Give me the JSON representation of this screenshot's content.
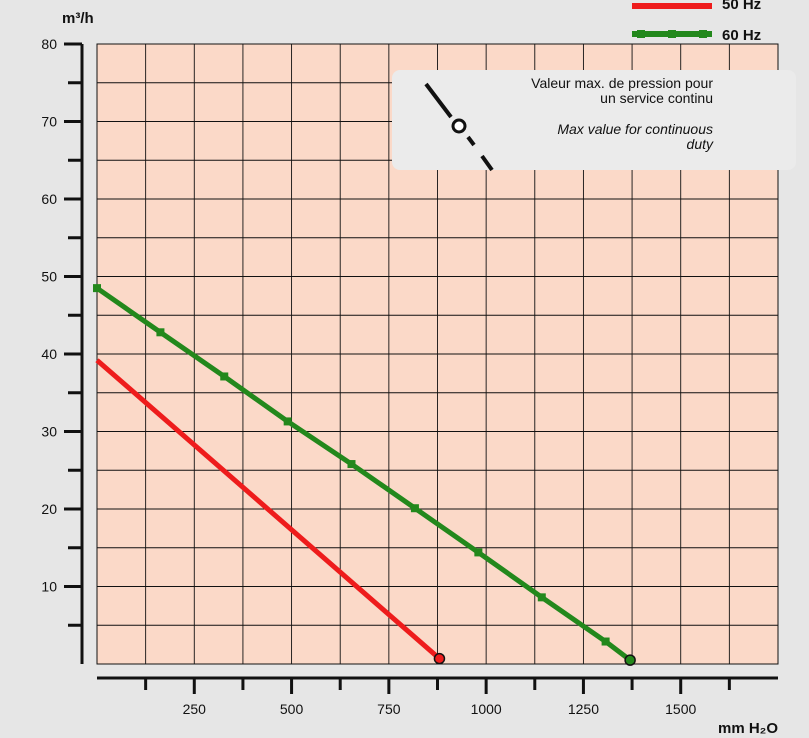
{
  "chart_data": {
    "type": "line",
    "ylabel": "m³/h",
    "xlabel": "mm H₂O",
    "xlim": [
      0,
      1750
    ],
    "ylim": [
      0,
      80
    ],
    "x_ticks": [
      250,
      500,
      750,
      1000,
      1250,
      1500
    ],
    "y_ticks": [
      10,
      20,
      30,
      40,
      50,
      60,
      70,
      80
    ],
    "grid": true,
    "legend_position": "top-right",
    "series": [
      {
        "name": "50 Hz",
        "color": "#ee1c1c",
        "x": [
          0,
          880
        ],
        "y": [
          39.2,
          0.7
        ],
        "markers": false
      },
      {
        "name": "60 Hz",
        "color": "#23881c",
        "x": [
          0,
          163,
          327,
          490,
          654,
          817,
          980,
          1143,
          1307,
          1370
        ],
        "y": [
          48.5,
          42.8,
          37.1,
          31.3,
          25.8,
          20.1,
          14.4,
          8.6,
          2.9,
          0.5
        ],
        "markers": true
      }
    ],
    "annotation": {
      "text_fr_line1": "Valeur max. de pression pour",
      "text_fr_line2": "un service continu",
      "text_en_line1": "Max value for continuous",
      "text_en_line2": "duty"
    }
  }
}
